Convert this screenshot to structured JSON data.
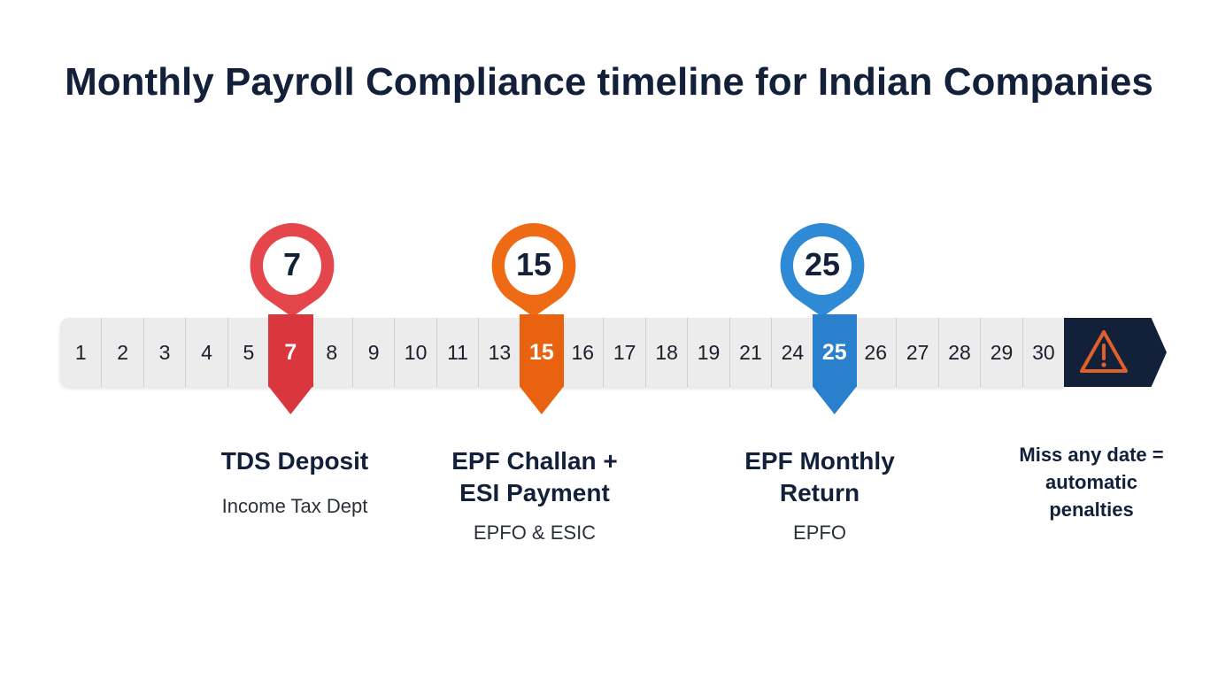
{
  "title": "Monthly Payroll Compliance timeline for Indian Companies",
  "days": [
    "1",
    "2",
    "3",
    "4",
    "5",
    "7",
    "8",
    "9",
    "10",
    "11",
    "13",
    "15",
    "16",
    "17",
    "18",
    "19",
    "21",
    "24",
    "25",
    "26",
    "27",
    "28",
    "29",
    "30"
  ],
  "milestones": [
    {
      "day": "7",
      "heading": "TDS Deposit",
      "heading2": "",
      "authority": "Income Tax Dept",
      "color": "#d9363e"
    },
    {
      "day": "15",
      "heading": "EPF Challan +",
      "heading2": "ESI Payment",
      "authority": "EPFO & ESIC",
      "color": "#e8620f"
    },
    {
      "day": "25",
      "heading": "EPF Monthly",
      "heading2": "Return",
      "authority": "EPFO",
      "color": "#2a80cc"
    }
  ],
  "warning": {
    "icon": "warning-triangle-icon",
    "color": "#e0602a",
    "line1": "Miss any date =",
    "line2": "automatic",
    "line3": "penalties"
  }
}
